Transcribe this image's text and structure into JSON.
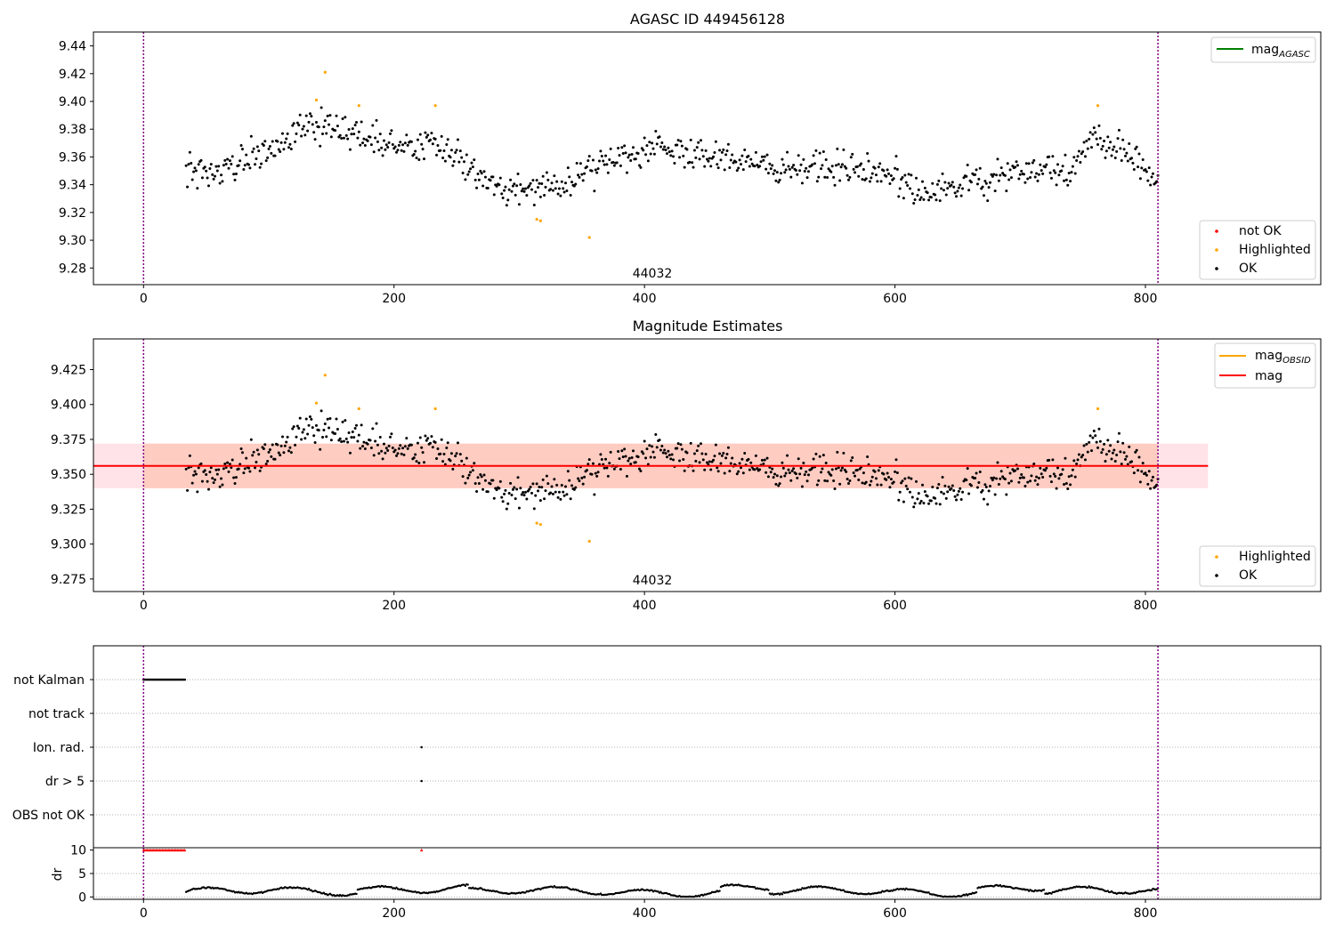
{
  "chart_data": [
    {
      "type": "scatter",
      "title": "AGASC ID 449456128",
      "xlim": [
        -40,
        940
      ],
      "ylim": [
        9.268,
        9.45
      ],
      "xticks": [
        0,
        200,
        400,
        600,
        800
      ],
      "yticks": [
        "9.28",
        "9.30",
        "9.32",
        "9.34",
        "9.36",
        "9.38",
        "9.40",
        "9.42",
        "9.44"
      ],
      "obsid_label": "44032",
      "obsid_boundaries": [
        0,
        810
      ],
      "legends": {
        "lines": [
          {
            "label": "mag",
            "subscript": "AGASC",
            "color": "#008000"
          }
        ],
        "markers": [
          {
            "label": "not OK",
            "color": "#ff0000"
          },
          {
            "label": "Highlighted",
            "color": "#ffa500"
          },
          {
            "label": "OK",
            "color": "#000000"
          }
        ]
      },
      "series": [
        {
          "name": "OK",
          "x_range": [
            34,
            810
          ],
          "color": "#000000",
          "points": "generated (~770 samples)"
        },
        {
          "name": "Highlighted",
          "color": "#ffa500",
          "x": [
            138,
            145,
            172,
            233,
            314,
            317,
            356,
            762
          ],
          "y": [
            9.401,
            9.421,
            9.397,
            9.397,
            9.315,
            9.314,
            9.302,
            9.397
          ]
        }
      ],
      "trend": {
        "x": [
          34,
          60,
          100,
          130,
          160,
          200,
          230,
          260,
          290,
          330,
          370,
          410,
          460,
          520,
          580,
          620,
          660,
          700,
          740,
          760,
          790,
          810
        ],
        "y": [
          9.35,
          9.352,
          9.362,
          9.382,
          9.383,
          9.366,
          9.37,
          9.352,
          9.335,
          9.34,
          9.355,
          9.366,
          9.36,
          9.352,
          9.352,
          9.338,
          9.34,
          9.35,
          9.352,
          9.375,
          9.36,
          9.345
        ]
      }
    },
    {
      "type": "scatter",
      "title": "Magnitude Estimates",
      "xlim": [
        -40,
        940
      ],
      "ylim": [
        9.266,
        9.447
      ],
      "xticks": [
        0,
        200,
        400,
        600,
        800
      ],
      "yticks": [
        "9.275",
        "9.300",
        "9.325",
        "9.350",
        "9.375",
        "9.400",
        "9.425"
      ],
      "obsid_label": "44032",
      "obsid_boundaries": [
        0,
        810
      ],
      "mag": 9.356,
      "band": [
        9.34,
        9.372
      ],
      "band_x": [
        -40,
        850
      ],
      "legends": {
        "lines": [
          {
            "label": "mag",
            "subscript": "OBSID",
            "color": "#ffa500"
          },
          {
            "label": "mag",
            "subscript": "",
            "color": "#ff0000"
          }
        ],
        "markers": [
          {
            "label": "Highlighted",
            "color": "#ffa500"
          },
          {
            "label": "OK",
            "color": "#000000"
          }
        ]
      }
    },
    {
      "type": "scatter",
      "title": "",
      "xlim": [
        -40,
        940
      ],
      "categories": [
        "not Kalman",
        "not track",
        "Ion. rad.",
        "dr > 5",
        "OBS not OK"
      ],
      "flags": {
        "not Kalman": {
          "x_range": [
            0,
            33
          ]
        },
        "Ion. rad.": {
          "x": [
            222
          ]
        },
        "dr > 5": {
          "x": [
            222
          ]
        }
      },
      "obsid_boundaries": [
        0,
        810
      ]
    },
    {
      "type": "scatter",
      "title": "",
      "ylabel": "dr",
      "xlim": [
        -40,
        940
      ],
      "ylim": [
        -0.5,
        10.5
      ],
      "yticks": [
        "0",
        "5",
        "10"
      ],
      "xticks": [
        0,
        200,
        400,
        600,
        800
      ],
      "clipped": {
        "x_range": [
          0,
          33
        ],
        "x_extra": [
          222
        ],
        "y": 10,
        "color": "#ff0000"
      },
      "obsid_boundaries": [
        0,
        810
      ]
    }
  ]
}
